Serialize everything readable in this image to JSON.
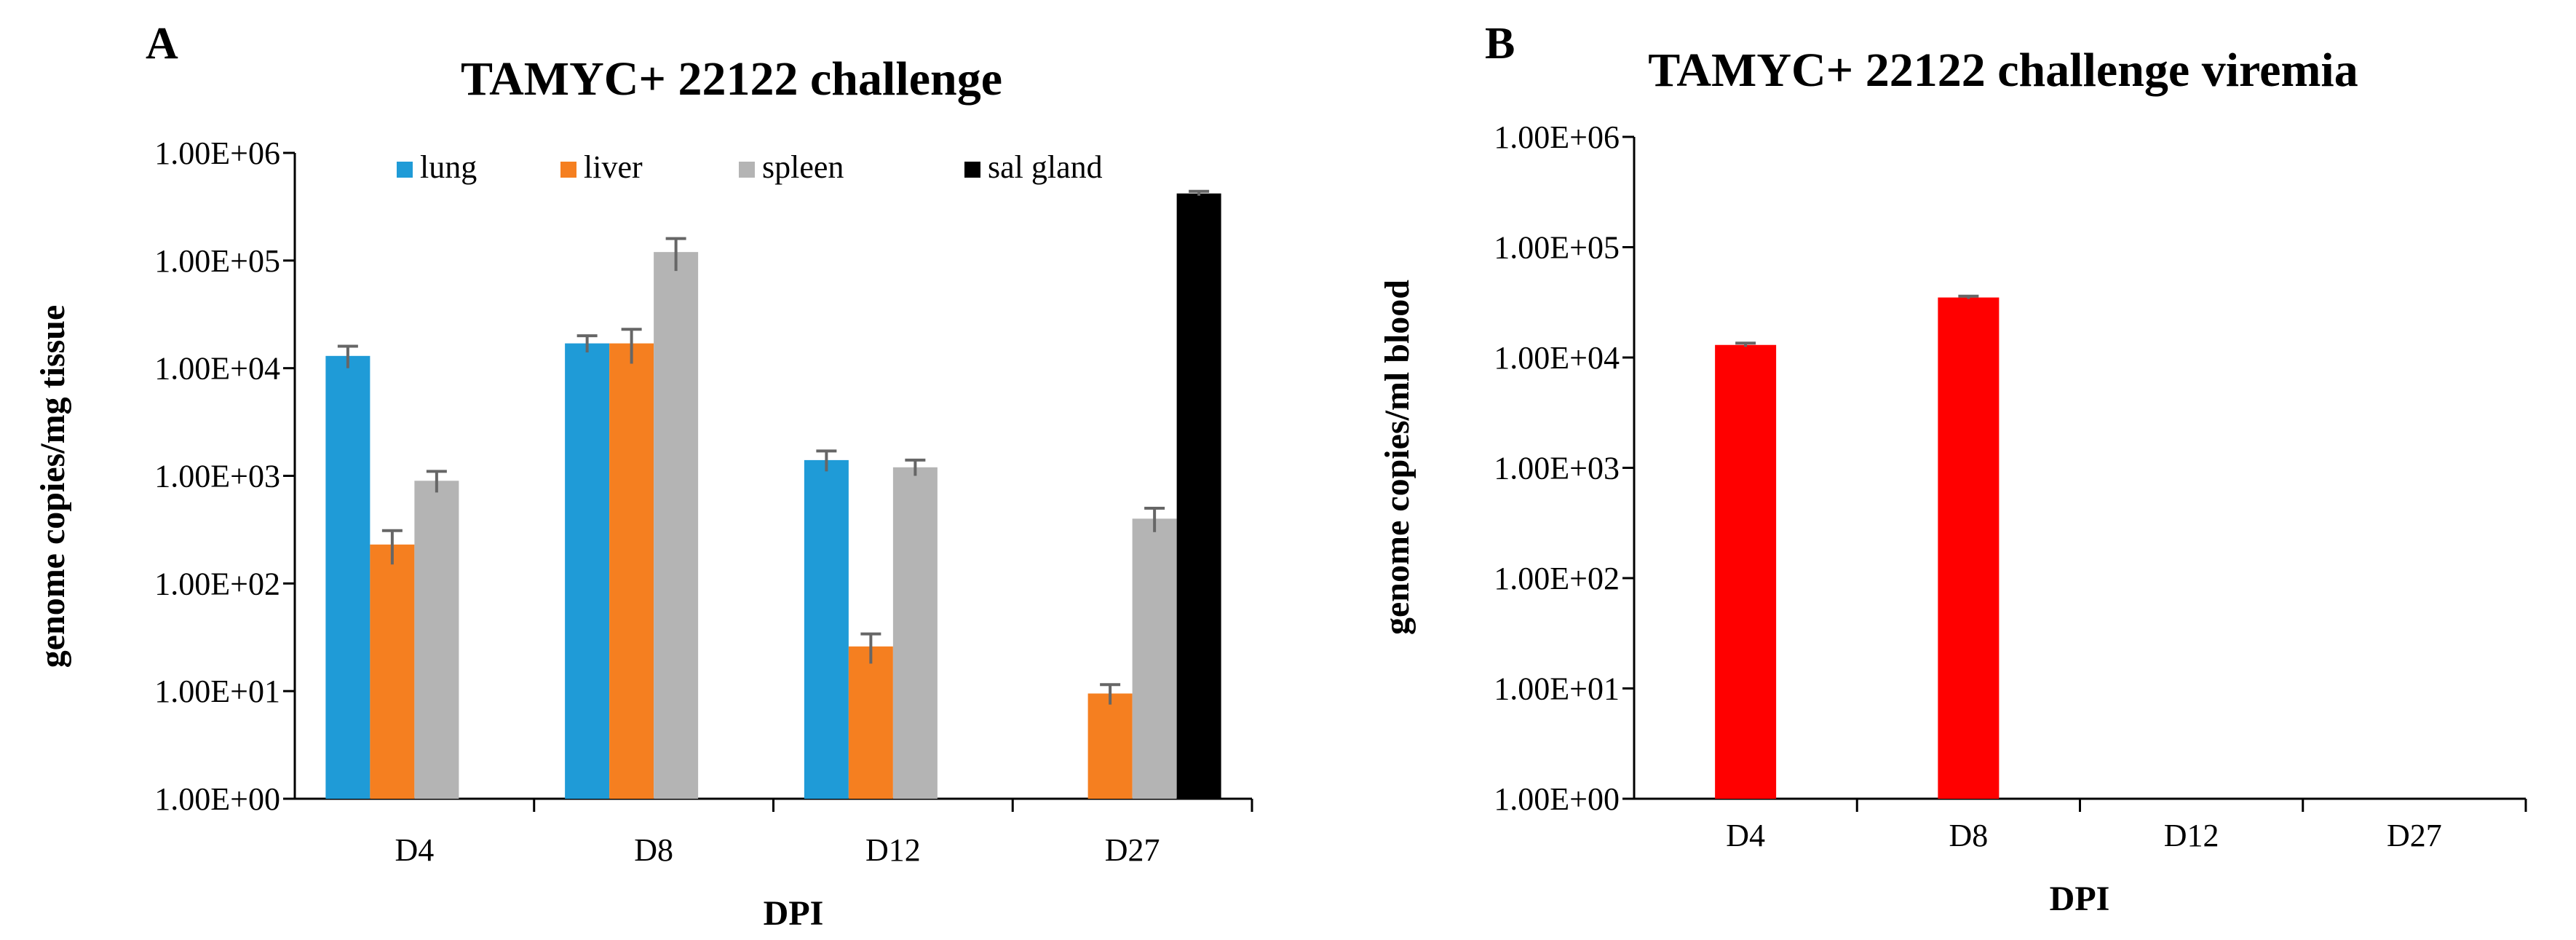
{
  "chart_data": [
    {
      "panel_label": "A",
      "type": "bar",
      "title": "TAMYC+ 22122 challenge",
      "xlabel": "DPI",
      "ylabel": "genome copies/mg tissue",
      "yscale": "log",
      "ylim": [
        1,
        1000000
      ],
      "yticks": [
        "1.00E+00",
        "1.00E+01",
        "1.00E+02",
        "1.00E+03",
        "1.00E+04",
        "1.00E+05",
        "1.00E+06"
      ],
      "categories": [
        "D4",
        "D8",
        "D12",
        "D27"
      ],
      "legend_position": "top",
      "series": [
        {
          "name": "lung",
          "color": "#1f9bd7",
          "values": [
            13000,
            17000,
            1400,
            null
          ],
          "errors": [
            3000,
            3000,
            300,
            null
          ]
        },
        {
          "name": "liver",
          "color": "#f57f20",
          "values": [
            230,
            17000,
            26,
            9.5
          ],
          "errors": [
            80,
            6000,
            8,
            2
          ]
        },
        {
          "name": "spleen",
          "color": "#b4b4b4",
          "values": [
            900,
            120000,
            1200,
            400
          ],
          "errors": [
            200,
            40000,
            200,
            100
          ]
        },
        {
          "name": "sal gland",
          "color": "#000000",
          "values": [
            null,
            null,
            null,
            420000
          ],
          "errors": [
            null,
            null,
            null,
            20000
          ]
        }
      ]
    },
    {
      "panel_label": "B",
      "type": "bar",
      "title": "TAMYC+ 22122 challenge viremia",
      "xlabel": "DPI",
      "ylabel": "genome copies/ml blood",
      "yscale": "log",
      "ylim": [
        1,
        1000000
      ],
      "yticks": [
        "1.00E+00",
        "1.00E+01",
        "1.00E+02",
        "1.00E+03",
        "1.00E+04",
        "1.00E+05",
        "1.00E+06"
      ],
      "categories": [
        "D4",
        "D8",
        "D12",
        "D27"
      ],
      "series": [
        {
          "color": "#ff0000",
          "values": [
            13000,
            35000,
            null,
            null
          ],
          "errors": [
            500,
            1000,
            null,
            null
          ]
        }
      ]
    }
  ]
}
